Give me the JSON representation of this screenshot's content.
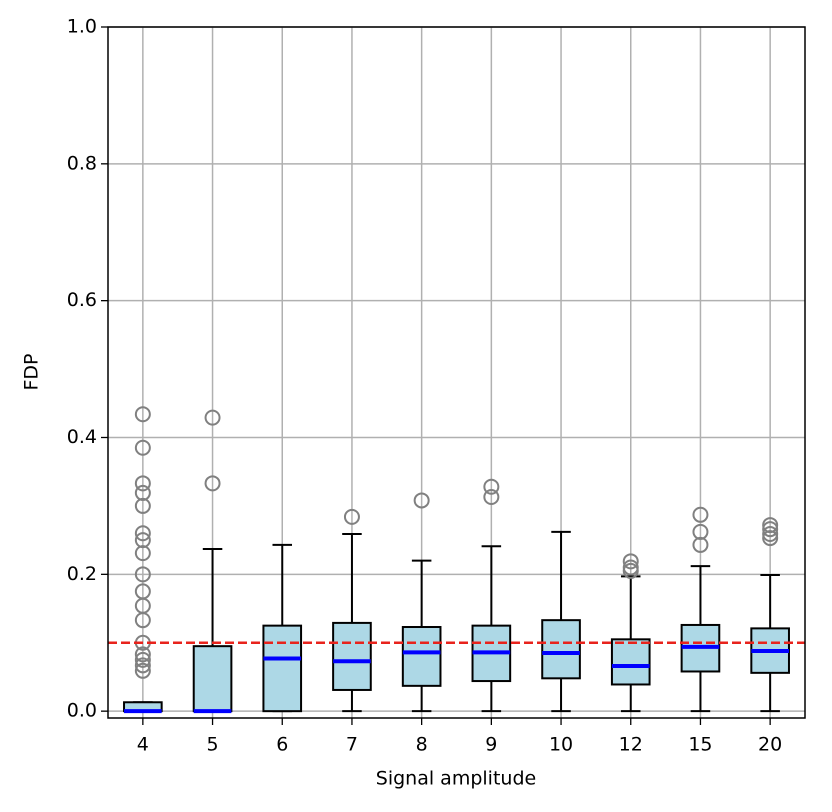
{
  "chart_data": {
    "type": "box",
    "xlabel": "Signal amplitude",
    "ylabel": "FDP",
    "categories": [
      "4",
      "5",
      "6",
      "7",
      "8",
      "9",
      "10",
      "12",
      "15",
      "20"
    ],
    "ylim": [
      -0.01,
      1.0
    ],
    "yticks": [
      {
        "value": 0,
        "label": "0.0"
      },
      0.2,
      0.4,
      0.6,
      0.8,
      {
        "value": 1,
        "label": "1.0"
      }
    ],
    "grid": true,
    "box_color": "#add8e6",
    "median_color": "#0000ff",
    "flier_color": "#808080",
    "boxes": [
      {
        "whislo": 0,
        "q1": 0,
        "median": 0,
        "q3": 0.013,
        "whishi": 0.013,
        "fliers": [
          0.434,
          0.385,
          0.333,
          0.319,
          0.3,
          0.26,
          0.25,
          0.231,
          0.2,
          0.175,
          0.154,
          0.133,
          0.1,
          0.083,
          0.075,
          0.067,
          0.059
        ]
      },
      {
        "whislo": 0,
        "q1": 0,
        "median": 0,
        "q3": 0.095,
        "whishi": 0.237,
        "fliers": [
          0.429,
          0.333
        ]
      },
      {
        "whislo": 0,
        "q1": 0,
        "median": 0.077,
        "q3": 0.125,
        "whishi": 0.243,
        "fliers": []
      },
      {
        "whislo": 0,
        "q1": 0.031,
        "median": 0.073,
        "q3": 0.129,
        "whishi": 0.259,
        "fliers": [
          0.284
        ]
      },
      {
        "whislo": 0,
        "q1": 0.037,
        "median": 0.086,
        "q3": 0.123,
        "whishi": 0.22,
        "fliers": [
          0.308
        ]
      },
      {
        "whislo": 0,
        "q1": 0.044,
        "median": 0.086,
        "q3": 0.125,
        "whishi": 0.241,
        "fliers": [
          0.328,
          0.313
        ]
      },
      {
        "whislo": 0,
        "q1": 0.048,
        "median": 0.085,
        "q3": 0.133,
        "whishi": 0.262,
        "fliers": []
      },
      {
        "whislo": 0,
        "q1": 0.039,
        "median": 0.066,
        "q3": 0.105,
        "whishi": 0.197,
        "fliers": [
          0.219,
          0.21,
          0.205
        ]
      },
      {
        "whislo": 0,
        "q1": 0.058,
        "median": 0.094,
        "q3": 0.126,
        "whishi": 0.212,
        "fliers": [
          0.287,
          0.262,
          0.243
        ]
      },
      {
        "whislo": 0,
        "q1": 0.056,
        "median": 0.088,
        "q3": 0.121,
        "whishi": 0.199,
        "fliers": [
          0.272,
          0.266,
          0.259,
          0.253
        ]
      }
    ],
    "hline": {
      "value": 0.1,
      "color": "#e8231c"
    }
  }
}
